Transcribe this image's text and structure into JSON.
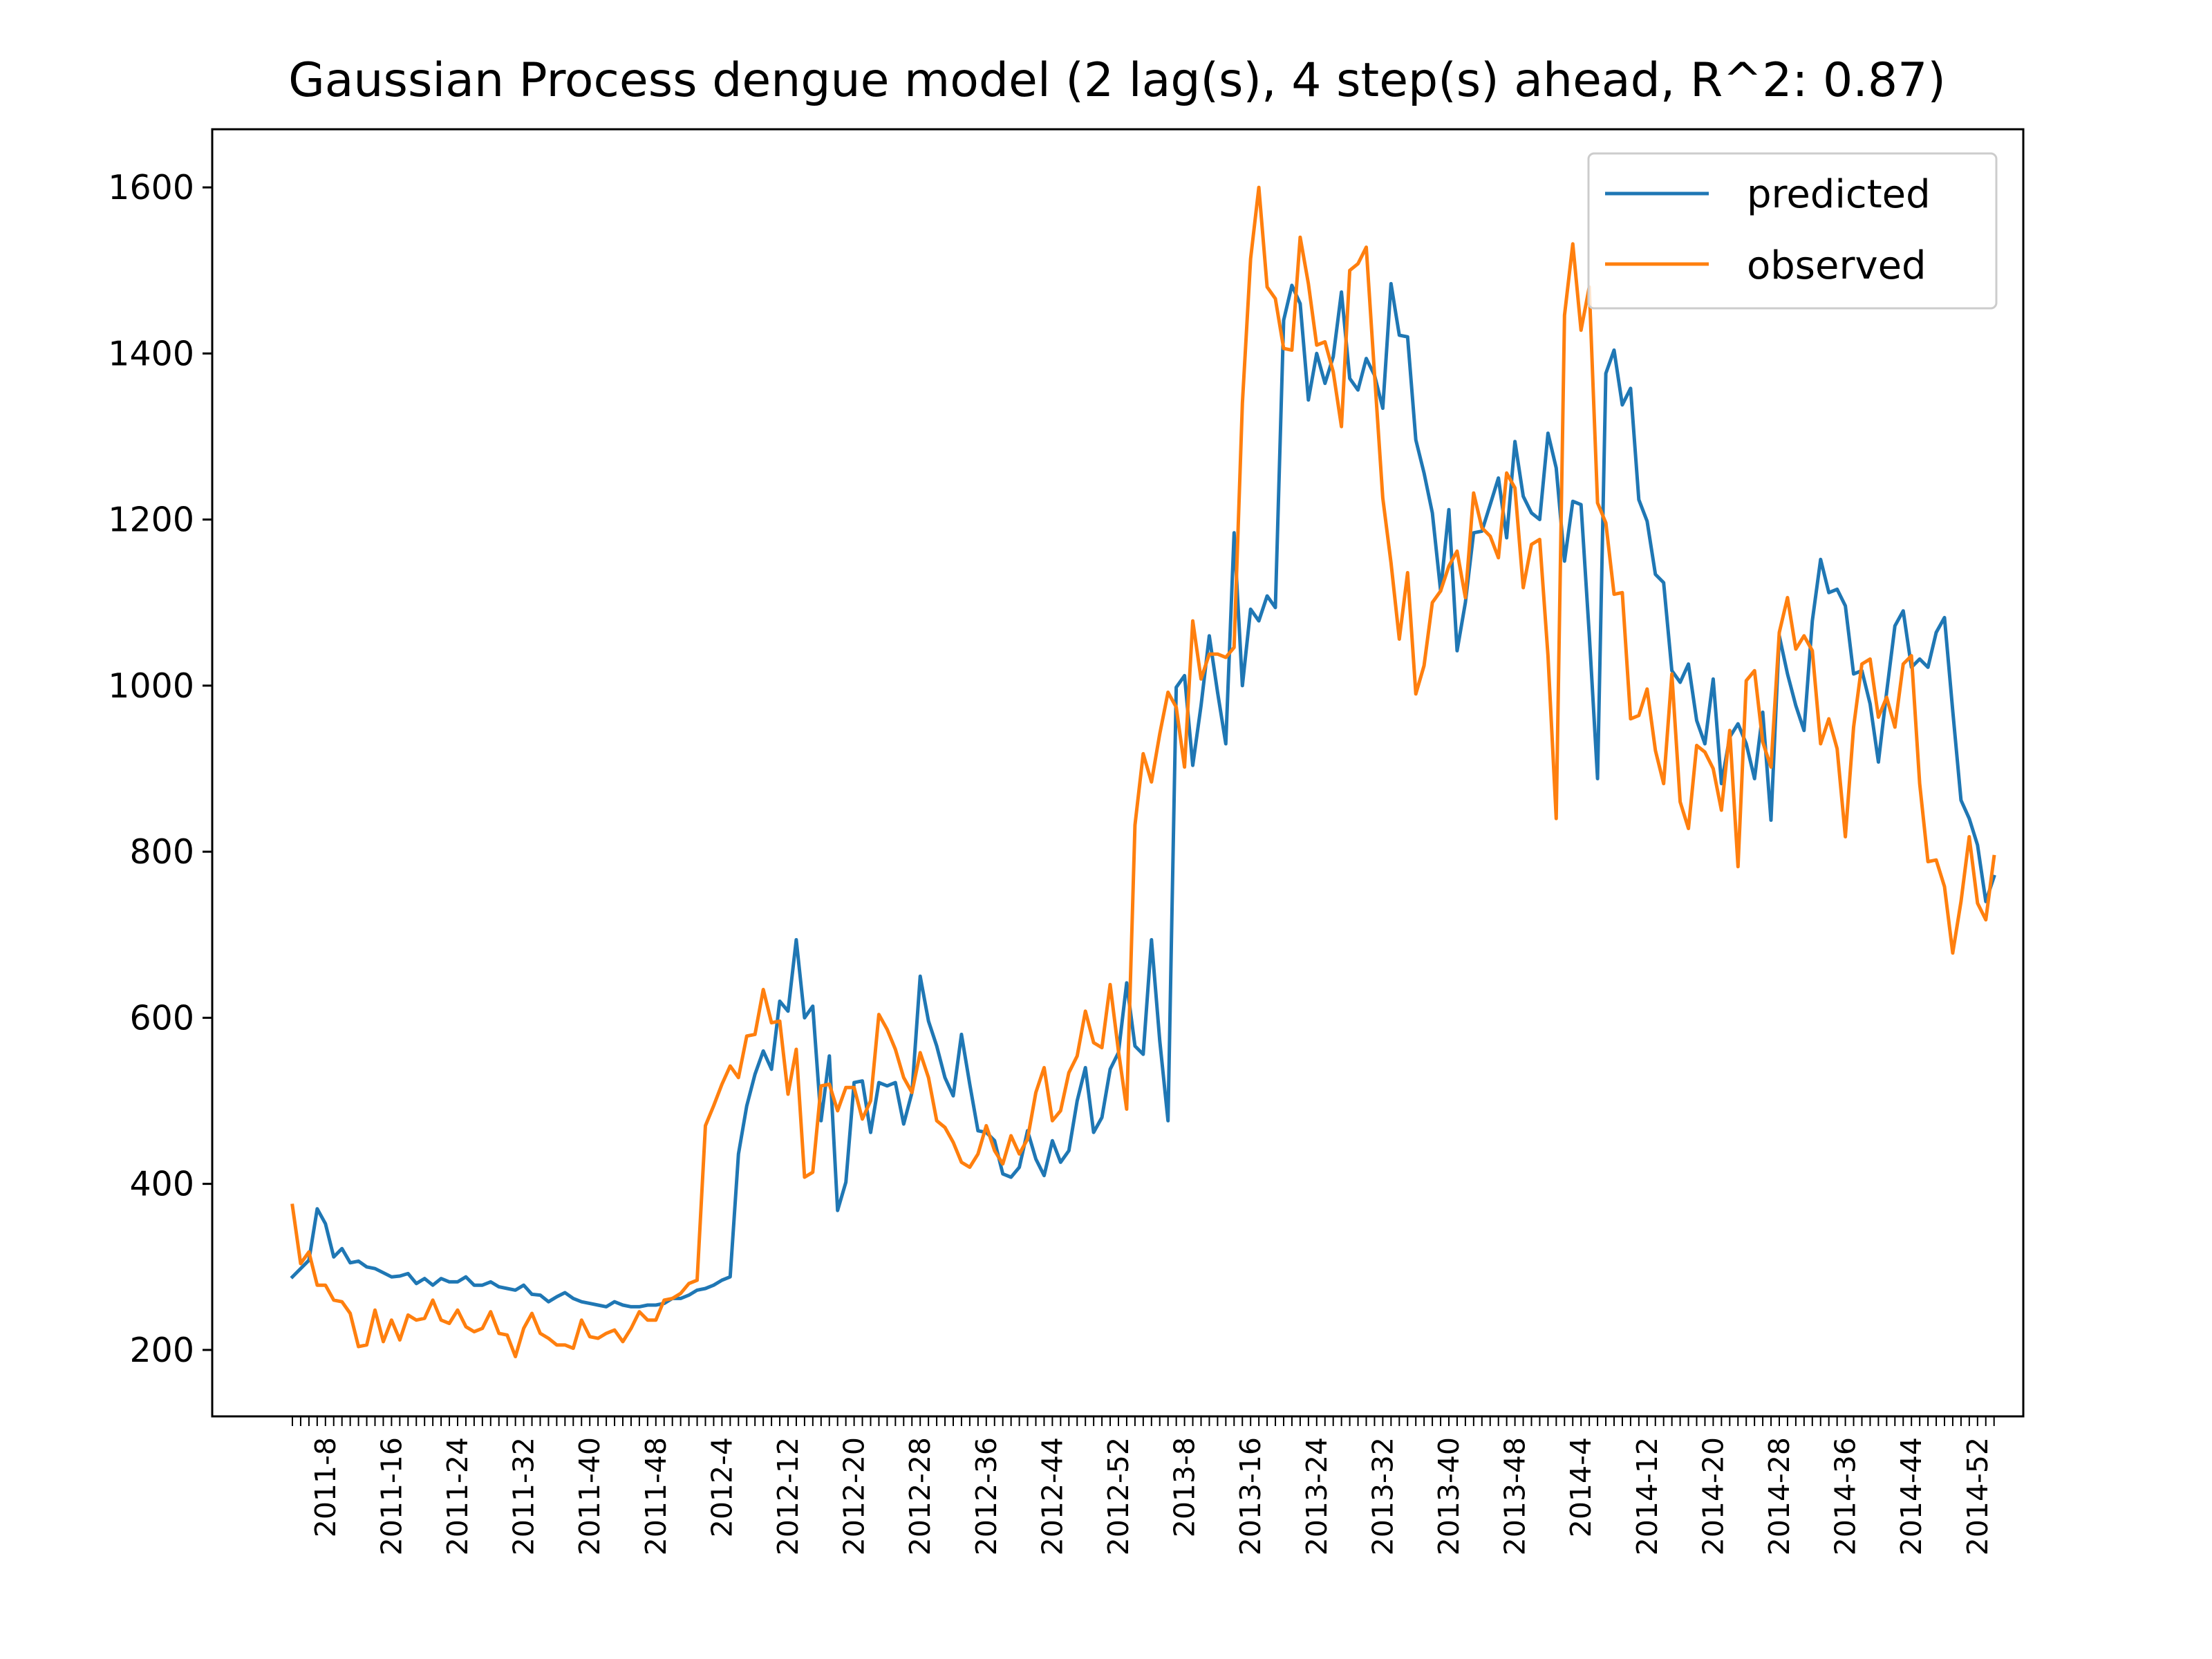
{
  "chart_data": {
    "type": "line",
    "title": "Gaussian Process dengue model (2 lag(s), 4 step(s) ahead, R^2: 0.87)",
    "xlabel": "",
    "ylabel": "",
    "ylim": [
      120,
      1670
    ],
    "yticks": [
      200,
      400,
      600,
      800,
      1000,
      1200,
      1400,
      1600
    ],
    "x_start_week": "2011-4",
    "x_end_week": "2014-53",
    "xtick_labels": [
      "2011-8",
      "2011-16",
      "2011-24",
      "2011-32",
      "2011-40",
      "2011-48",
      "2012-4",
      "2012-12",
      "2012-20",
      "2012-28",
      "2012-36",
      "2012-44",
      "2012-52",
      "2013-8",
      "2013-16",
      "2013-24",
      "2013-32",
      "2013-40",
      "2013-48",
      "2014-4",
      "2014-12",
      "2014-20",
      "2014-28",
      "2014-36",
      "2014-44",
      "2014-52"
    ],
    "grid": false,
    "legend": {
      "position": "upper right"
    },
    "series": [
      {
        "name": "predicted",
        "color": "#1f77b4",
        "values": [
          288,
          298,
          308,
          370,
          352,
          312,
          322,
          305,
          307,
          300,
          298,
          293,
          288,
          289,
          292,
          280,
          286,
          278,
          286,
          282,
          282,
          288,
          278,
          278,
          282,
          276,
          274,
          272,
          278,
          267,
          266,
          258,
          264,
          269,
          262,
          258,
          256,
          254,
          252,
          258,
          254,
          252,
          252,
          254,
          254,
          256,
          262,
          262,
          266,
          272,
          274,
          278,
          284,
          288,
          436,
          494,
          532,
          560,
          538,
          620,
          608,
          694,
          600,
          614,
          476,
          554,
          368,
          402,
          522,
          524,
          462,
          522,
          518,
          522,
          472,
          510,
          650,
          596,
          566,
          528,
          506,
          580,
          520,
          464,
          462,
          452,
          412,
          408,
          420,
          464,
          430,
          410,
          452,
          426,
          440,
          500,
          540,
          462,
          480,
          538,
          558,
          642,
          566,
          556,
          694,
          572,
          476,
          998,
          1012,
          904,
          976,
          1060,
          992,
          930,
          1184,
          1000,
          1092,
          1078,
          1108,
          1094,
          1440,
          1482,
          1460,
          1344,
          1400,
          1364,
          1396,
          1474,
          1370,
          1356,
          1394,
          1374,
          1334,
          1484,
          1422,
          1420,
          1296,
          1256,
          1208,
          1114,
          1212,
          1042,
          1100,
          1184,
          1186,
          1218,
          1250,
          1178,
          1294,
          1228,
          1208,
          1200,
          1304,
          1262,
          1150,
          1222,
          1218,
          1062,
          888,
          1376,
          1404,
          1338,
          1358,
          1224,
          1198,
          1134,
          1124,
          1018,
          1004,
          1026,
          958,
          930,
          1008,
          882,
          938,
          954,
          930,
          888,
          968,
          838,
          1060,
          1014,
          976,
          946,
          1078,
          1152,
          1112,
          1116,
          1096,
          1014,
          1018,
          978,
          908,
          992,
          1072,
          1090,
          1022,
          1032,
          1022,
          1064,
          1082,
          970,
          862,
          840,
          808,
          740,
          770
        ],
        "label_positions": []
      },
      {
        "name": "observed",
        "color": "#ff7f0e",
        "values": [
          374,
          304,
          318,
          278,
          278,
          260,
          258,
          244,
          204,
          206,
          248,
          210,
          236,
          212,
          242,
          236,
          238,
          260,
          236,
          232,
          248,
          228,
          222,
          226,
          246,
          220,
          218,
          192,
          226,
          244,
          220,
          214,
          206,
          206,
          202,
          236,
          216,
          214,
          220,
          224,
          210,
          226,
          246,
          236,
          236,
          260,
          262,
          268,
          280,
          284,
          470,
          494,
          520,
          542,
          528,
          578,
          580,
          634,
          594,
          596,
          508,
          562,
          408,
          414,
          518,
          520,
          488,
          516,
          516,
          478,
          500,
          604,
          586,
          562,
          528,
          510,
          558,
          528,
          476,
          468,
          450,
          426,
          420,
          436,
          470,
          440,
          424,
          458,
          436,
          454,
          510,
          540,
          476,
          488,
          534,
          554,
          608,
          570,
          564,
          640,
          560,
          490,
          832,
          918,
          884,
          942,
          992,
          974,
          902,
          1078,
          1008,
          1038,
          1038,
          1034,
          1046,
          1340,
          1514,
          1600,
          1480,
          1466,
          1406,
          1404,
          1540,
          1484,
          1410,
          1414,
          1378,
          1312,
          1500,
          1508,
          1528,
          1376,
          1226,
          1148,
          1056,
          1136,
          990,
          1024,
          1100,
          1114,
          1144,
          1162,
          1106,
          1232,
          1190,
          1180,
          1154,
          1256,
          1238,
          1118,
          1170,
          1176,
          1036,
          840,
          1446,
          1532,
          1428,
          1480,
          1220,
          1196,
          1110,
          1112,
          960,
          964,
          996,
          922,
          882,
          1014,
          860,
          828,
          928,
          920,
          900,
          850,
          946,
          782,
          1006,
          1018,
          932,
          902,
          1064,
          1106,
          1044,
          1060,
          1042,
          930,
          960,
          924,
          818,
          950,
          1026,
          1032,
          962,
          986,
          950,
          1026,
          1036,
          882,
          788,
          790,
          758,
          678,
          740,
          818,
          738,
          718,
          794
        ]
      }
    ]
  }
}
